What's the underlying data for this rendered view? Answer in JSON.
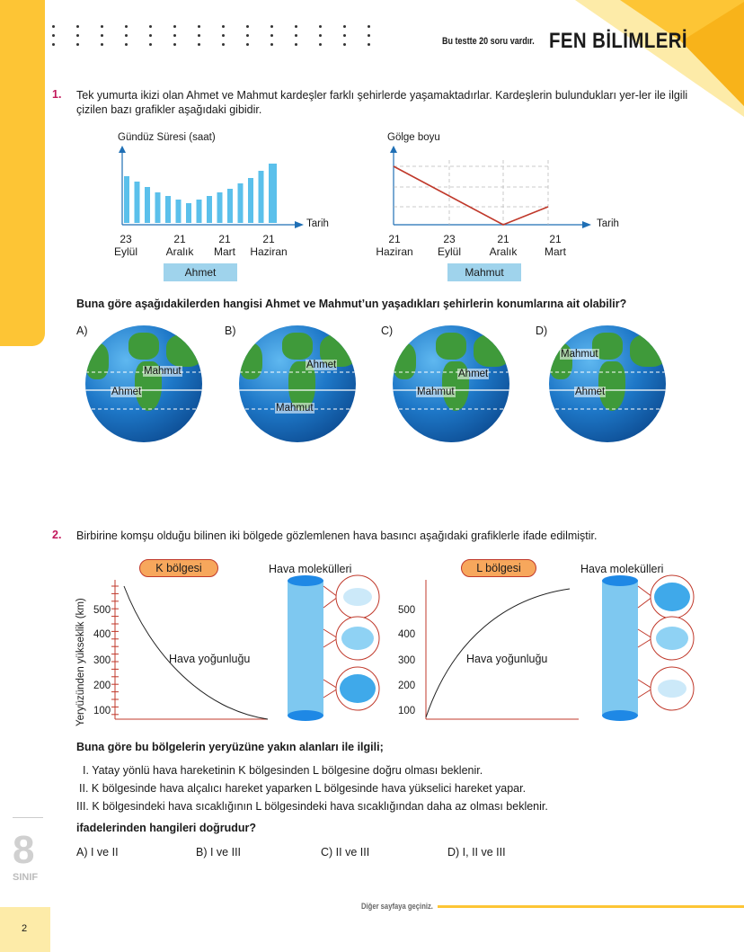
{
  "header": {
    "note": "Bu testte 20 soru vardır.",
    "title": "FEN BİLİMLERİ"
  },
  "q1": {
    "number": "1.",
    "text": "Tek yumurta ikizi olan Ahmet ve Mahmut kardeşler farklı şehirlerde yaşamaktadırlar. Kardeşlerin bulundukları yer-ler ile ilgili çizilen bazı grafikler aşağıdaki gibidir.",
    "chart_left": {
      "ylabel": "Gündüz Süresi (saat)",
      "xlabel": "Tarih",
      "ticks": [
        {
          "day": "23",
          "month": "Eylül"
        },
        {
          "day": "21",
          "month": "Aralık"
        },
        {
          "day": "21",
          "month": "Mart"
        },
        {
          "day": "21",
          "month": "Haziran"
        }
      ],
      "tag": "Ahmet"
    },
    "chart_right": {
      "ylabel": "Gölge boyu",
      "xlabel": "Tarih",
      "ticks": [
        {
          "day": "21",
          "month": "Haziran"
        },
        {
          "day": "23",
          "month": "Eylül"
        },
        {
          "day": "21",
          "month": "Aralık"
        },
        {
          "day": "21",
          "month": "Mart"
        }
      ],
      "tag": "Mahmut"
    },
    "question": "Buna göre aşağıdakilerden hangisi Ahmet ve Mahmut’un yaşadıkları şehirlerin konumlarına ait olabilir?",
    "options": [
      {
        "letter": "A)",
        "top_label": "Mahmut",
        "bottom_label": "Ahmet"
      },
      {
        "letter": "B)",
        "top_label": "Ahmet",
        "bottom_label": "Mahmut"
      },
      {
        "letter": "C)",
        "top_label": "Ahmet",
        "bottom_label": "Mahmut"
      },
      {
        "letter": "D)",
        "top_label": "Mahmut",
        "bottom_label": "Ahmet"
      }
    ]
  },
  "q2": {
    "number": "2.",
    "text": "Birbirine komşu olduğu bilinen iki bölgede gözlemlenen hava basıncı aşağıdaki grafiklerle ifade edilmiştir.",
    "ylabel": "Yeryüzünden yükseklik (km)",
    "left_region": "K bölgesi",
    "right_region": "L bölgesi",
    "molecules": "Hava molekülleri",
    "curve_label": "Hava yoğunluğu",
    "yticks": [
      "500",
      "400",
      "300",
      "200",
      "100"
    ],
    "lead": "Buna göre bu bölgelerin yeryüzüne yakın alanları ile ilgili;",
    "statements": [
      "I. Yatay yönlü hava hareketinin K bölgesinden L bölgesine doğru olması beklenir.",
      "II. K bölgesinde hava alçalıcı hareket yaparken L bölgesinde hava yükselici hareket yapar.",
      "III. K bölgesindeki hava sıcaklığının L bölgesindeki hava sıcaklığından daha az olması beklenir."
    ],
    "ask": "ifadelerinden hangileri doğrudur?",
    "answers": [
      "A) I ve II",
      "B) I ve III",
      "C) II ve III",
      "D) I, II ve III"
    ]
  },
  "footer": {
    "note": "Diğer sayfaya geçiniz.",
    "grade_number": "8",
    "grade_word": "SINIF",
    "page": "2"
  }
}
